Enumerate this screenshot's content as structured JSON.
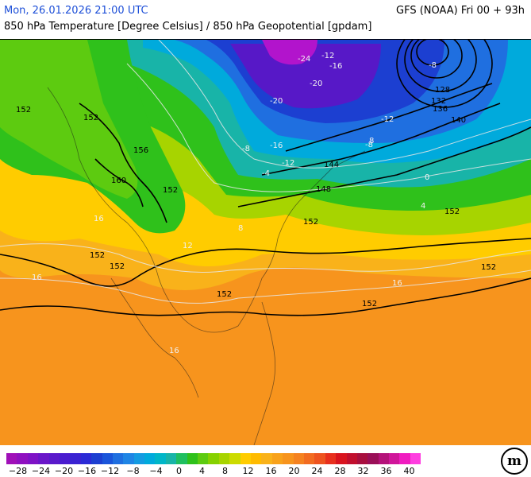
{
  "header": {
    "datetime": "Mon, 26.01.2026 21:00 UTC",
    "model": "GFS (NOAA) Fri 00 + 93h",
    "description": "850 hPa Temperature [Degree Celsius] / 850 hPa Geopotential [gpdam]"
  },
  "map": {
    "geopotential_labels": [
      "152",
      "152",
      "152",
      "152",
      "156",
      "160",
      "152",
      "152",
      "152",
      "152",
      "152",
      "152",
      "148",
      "144",
      "140",
      "136",
      "132",
      "128"
    ],
    "temperature_labels": [
      "-24",
      "-20",
      "-16",
      "-12",
      "-12",
      "-8",
      "-8",
      "-4",
      "0",
      "4",
      "8",
      "12",
      "16",
      "16",
      "16",
      "16",
      "-12",
      "-16",
      "-20",
      "-8",
      "8"
    ],
    "colors": {
      "warm": "#f7941d",
      "orange_light": "#f9b21a",
      "yellow": "#ffcc00",
      "green_yellow": "#a7d400",
      "green": "#2fc11b",
      "teal": "#18b4a8",
      "cyan": "#00aadc",
      "blue": "#1f6fe0",
      "deep_blue": "#1c3fd1",
      "purple": "#5718c7",
      "magenta": "#b214cc"
    }
  },
  "legend": {
    "ticks": [
      "−28",
      "−24",
      "−20",
      "−16",
      "−12",
      "−8",
      "−4",
      "0",
      "4",
      "8",
      "12",
      "16",
      "20",
      "24",
      "28",
      "32",
      "36",
      "40"
    ],
    "colors": [
      "#a010b8",
      "#8f10c0",
      "#7e12c6",
      "#6a16c9",
      "#5a19cb",
      "#4a1ccf",
      "#3a22d2",
      "#2b2ad6",
      "#1c3fd1",
      "#1a55da",
      "#1f6fe0",
      "#1f85e5",
      "#149be2",
      "#00aadc",
      "#00b6c8",
      "#18b4a8",
      "#1fbf60",
      "#2fc11b",
      "#5dcb10",
      "#86d100",
      "#a7d400",
      "#ccdb00",
      "#ffcc00",
      "#ffbb00",
      "#f9b21a",
      "#f8a21b",
      "#f7941d",
      "#f58220",
      "#f26c21",
      "#ee5420",
      "#e8301e",
      "#d9141f",
      "#c10f2e",
      "#a80f3f",
      "#9a0f58",
      "#b4127a",
      "#d0169a",
      "#f01cc0",
      "#ff3ee0"
    ]
  },
  "logo": "m"
}
